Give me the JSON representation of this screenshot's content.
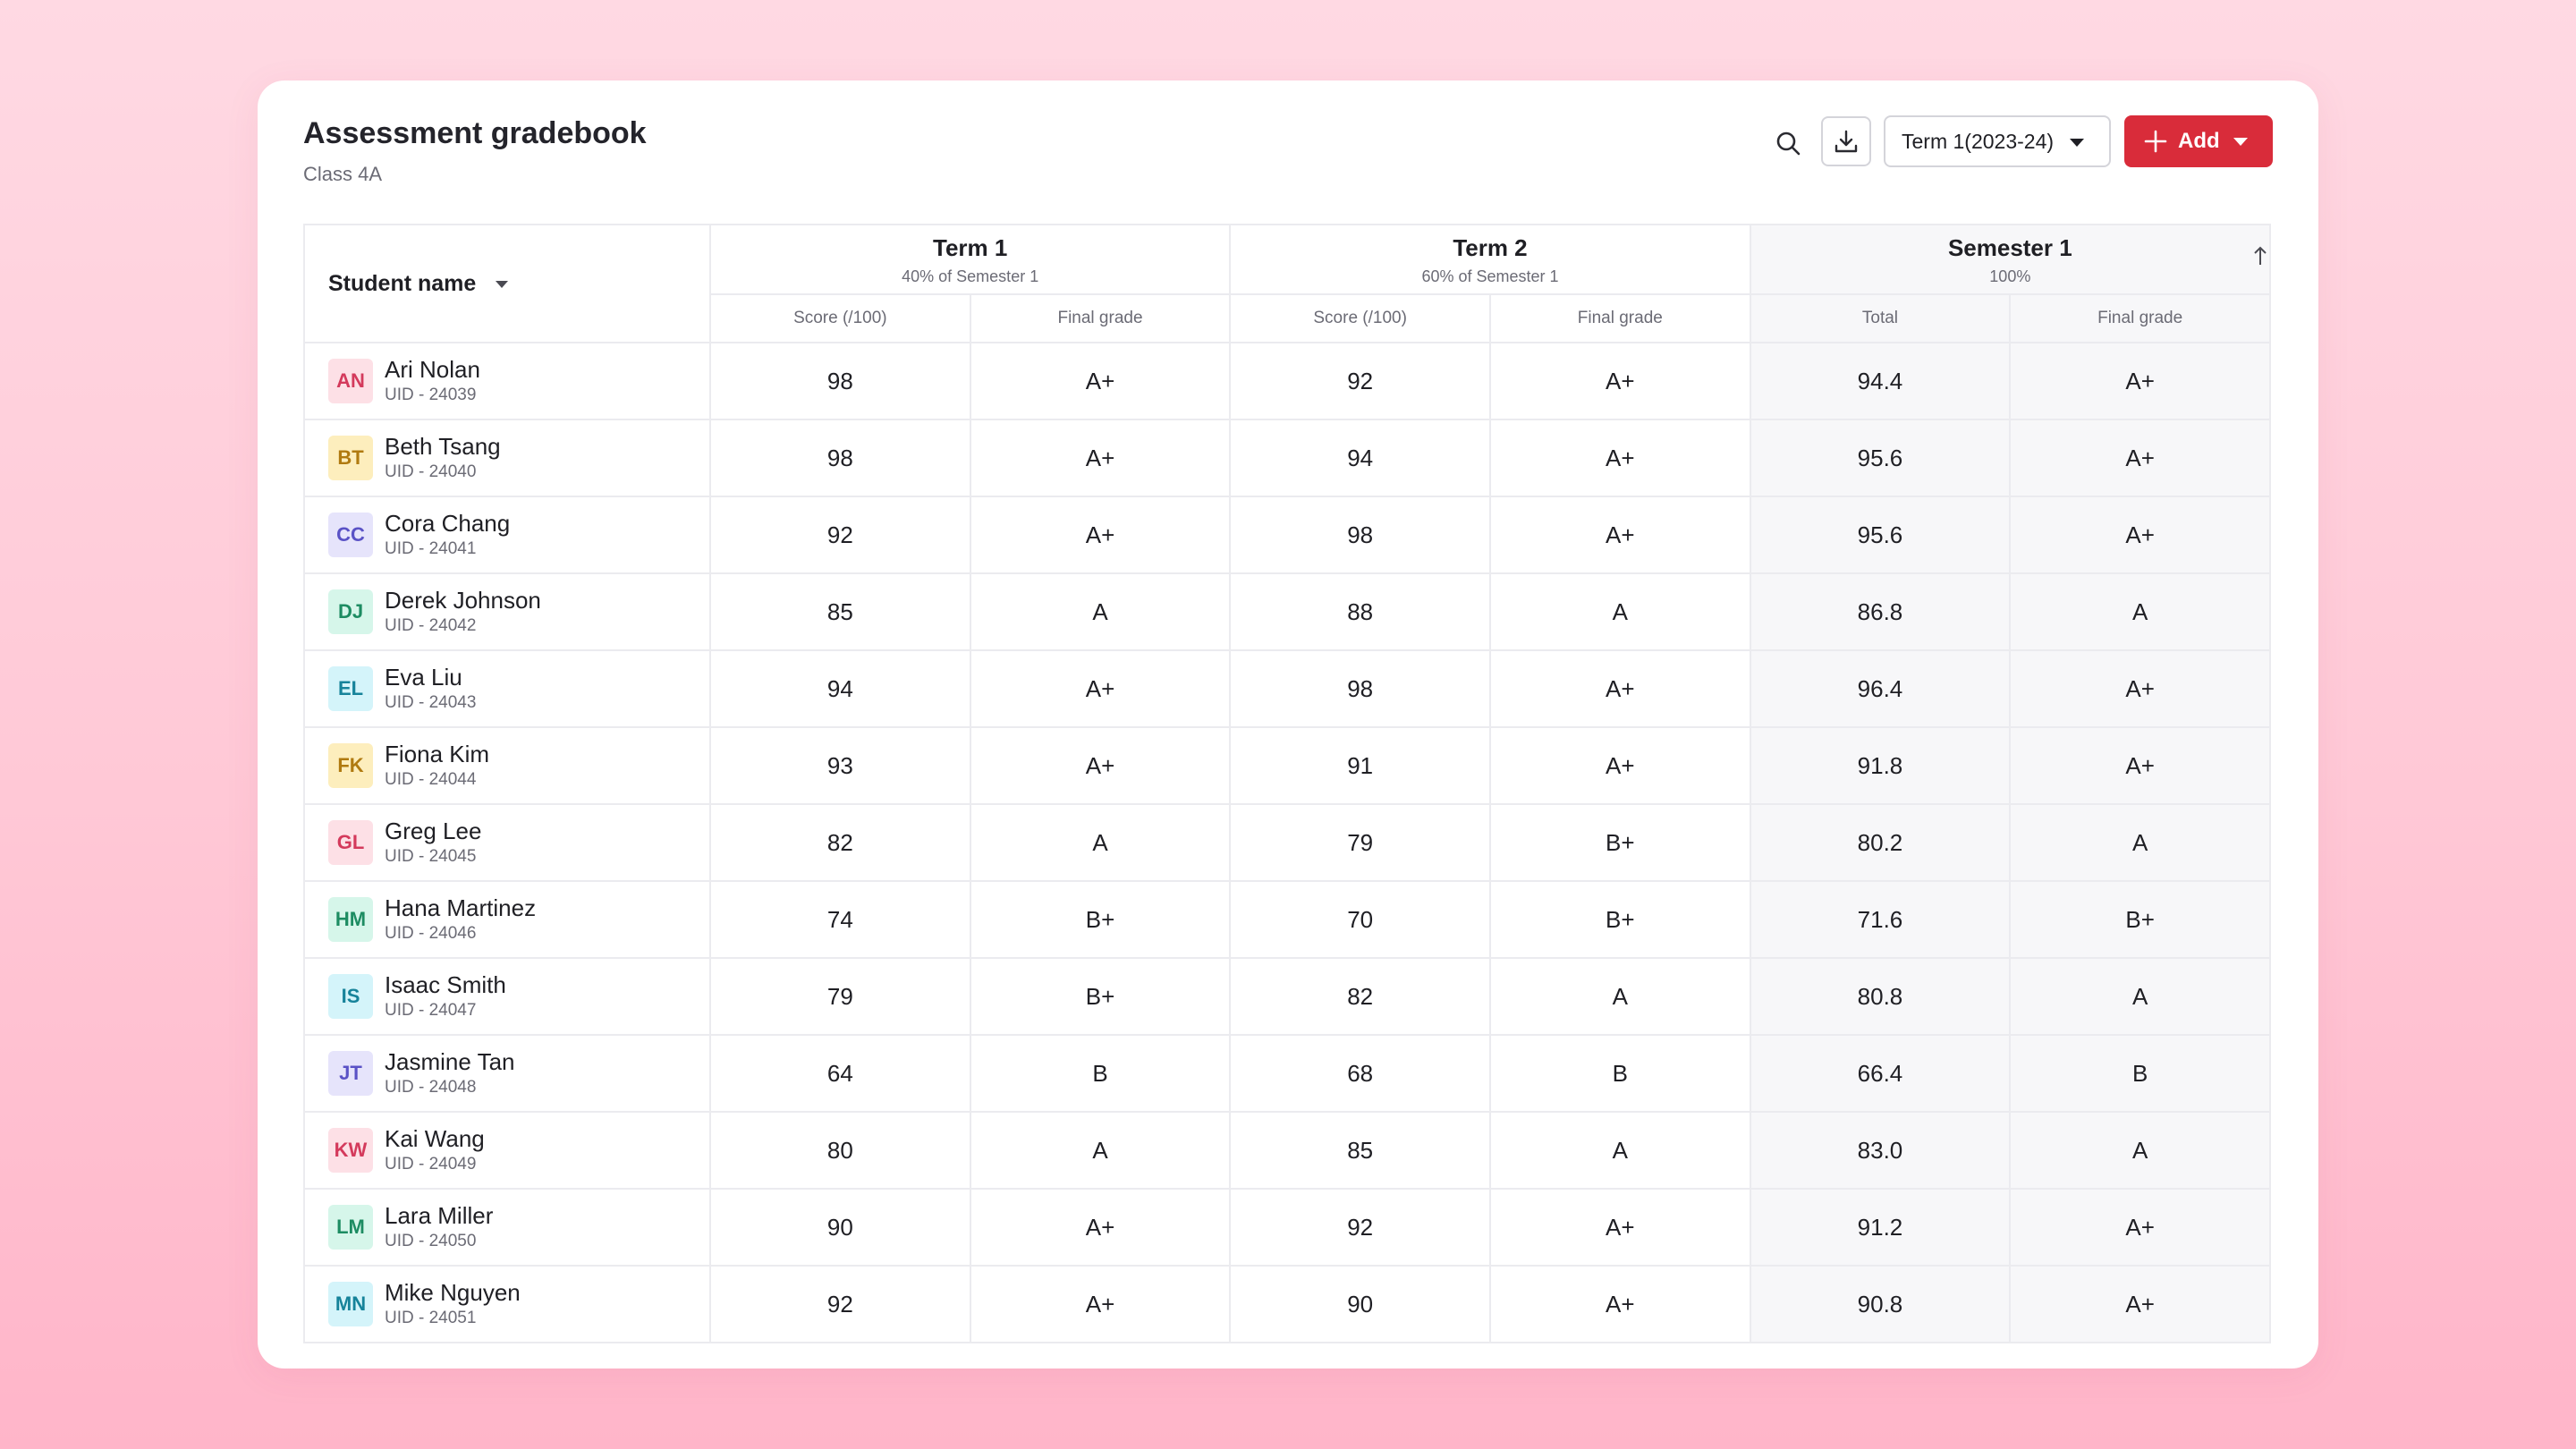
{
  "header": {
    "title": "Assessment gradebook",
    "subtitle": "Class 4A"
  },
  "toolbar": {
    "search_icon": "search-icon",
    "download_icon": "download-icon",
    "term_select": "Term 1(2023-24)",
    "add_label": "Add"
  },
  "table": {
    "name_header": "Student name",
    "groups": [
      {
        "title": "Term 1",
        "subtitle": "40% of Semester 1"
      },
      {
        "title": "Term 2",
        "subtitle": "60% of Semester 1"
      },
      {
        "title": "Semester 1",
        "subtitle": "100%"
      }
    ],
    "subheaders": [
      "Score (/100)",
      "Final grade",
      "Score (/100)",
      "Final grade",
      "Total",
      "Final grade"
    ],
    "rows": [
      {
        "initials": "AN",
        "name": "Ari Nolan",
        "uid": "UID - 24039",
        "avatar_bg": "#fde0e6",
        "avatar_fg": "#d43a5c",
        "t1_score": "98",
        "t1_grade": "A+",
        "t2_score": "92",
        "t2_grade": "A+",
        "total": "94.4",
        "sem_grade": "A+"
      },
      {
        "initials": "BT",
        "name": "Beth Tsang",
        "uid": "UID - 24040",
        "avatar_bg": "#fdeebd",
        "avatar_fg": "#b07a10",
        "t1_score": "98",
        "t1_grade": "A+",
        "t2_score": "94",
        "t2_grade": "A+",
        "total": "95.6",
        "sem_grade": "A+"
      },
      {
        "initials": "CC",
        "name": "Cora Chang",
        "uid": "UID - 24041",
        "avatar_bg": "#e6e4fb",
        "avatar_fg": "#5a52c6",
        "t1_score": "92",
        "t1_grade": "A+",
        "t2_score": "98",
        "t2_grade": "A+",
        "total": "95.6",
        "sem_grade": "A+"
      },
      {
        "initials": "DJ",
        "name": "Derek Johnson",
        "uid": "UID - 24042",
        "avatar_bg": "#d6f6ea",
        "avatar_fg": "#1d8c62",
        "t1_score": "85",
        "t1_grade": "A",
        "t2_score": "88",
        "t2_grade": "A",
        "total": "86.8",
        "sem_grade": "A"
      },
      {
        "initials": "EL",
        "name": "Eva Liu",
        "uid": "UID - 24043",
        "avatar_bg": "#d4f4fa",
        "avatar_fg": "#16839a",
        "t1_score": "94",
        "t1_grade": "A+",
        "t2_score": "98",
        "t2_grade": "A+",
        "total": "96.4",
        "sem_grade": "A+"
      },
      {
        "initials": "FK",
        "name": "Fiona Kim",
        "uid": "UID - 24044",
        "avatar_bg": "#fdeebd",
        "avatar_fg": "#b07a10",
        "t1_score": "93",
        "t1_grade": "A+",
        "t2_score": "91",
        "t2_grade": "A+",
        "total": "91.8",
        "sem_grade": "A+"
      },
      {
        "initials": "GL",
        "name": "Greg Lee",
        "uid": "UID - 24045",
        "avatar_bg": "#fde0e6",
        "avatar_fg": "#d43a5c",
        "t1_score": "82",
        "t1_grade": "A",
        "t2_score": "79",
        "t2_grade": "B+",
        "total": "80.2",
        "sem_grade": "A"
      },
      {
        "initials": "HM",
        "name": "Hana Martinez",
        "uid": "UID - 24046",
        "avatar_bg": "#d6f6ea",
        "avatar_fg": "#1d8c62",
        "t1_score": "74",
        "t1_grade": "B+",
        "t2_score": "70",
        "t2_grade": "B+",
        "total": "71.6",
        "sem_grade": "B+"
      },
      {
        "initials": "IS",
        "name": "Isaac Smith",
        "uid": "UID - 24047",
        "avatar_bg": "#d4f4fa",
        "avatar_fg": "#16839a",
        "t1_score": "79",
        "t1_grade": "B+",
        "t2_score": "82",
        "t2_grade": "A",
        "total": "80.8",
        "sem_grade": "A"
      },
      {
        "initials": "JT",
        "name": "Jasmine Tan",
        "uid": "UID - 24048",
        "avatar_bg": "#e6e4fb",
        "avatar_fg": "#5a52c6",
        "t1_score": "64",
        "t1_grade": "B",
        "t2_score": "68",
        "t2_grade": "B",
        "total": "66.4",
        "sem_grade": "B"
      },
      {
        "initials": "KW",
        "name": "Kai Wang",
        "uid": "UID - 24049",
        "avatar_bg": "#fde0e6",
        "avatar_fg": "#d43a5c",
        "t1_score": "80",
        "t1_grade": "A",
        "t2_score": "85",
        "t2_grade": "A",
        "total": "83.0",
        "sem_grade": "A"
      },
      {
        "initials": "LM",
        "name": "Lara Miller",
        "uid": "UID - 24050",
        "avatar_bg": "#d6f6ea",
        "avatar_fg": "#1d8c62",
        "t1_score": "90",
        "t1_grade": "A+",
        "t2_score": "92",
        "t2_grade": "A+",
        "total": "91.2",
        "sem_grade": "A+"
      },
      {
        "initials": "MN",
        "name": "Mike Nguyen",
        "uid": "UID - 24051",
        "avatar_bg": "#d4f4fa",
        "avatar_fg": "#16839a",
        "t1_score": "92",
        "t1_grade": "A+",
        "t2_score": "90",
        "t2_grade": "A+",
        "total": "90.8",
        "sem_grade": "A+"
      }
    ]
  },
  "colors": {
    "accent": "#d92c3a",
    "background_top": "#ffd9e3",
    "background_bottom": "#ffb5c9"
  }
}
